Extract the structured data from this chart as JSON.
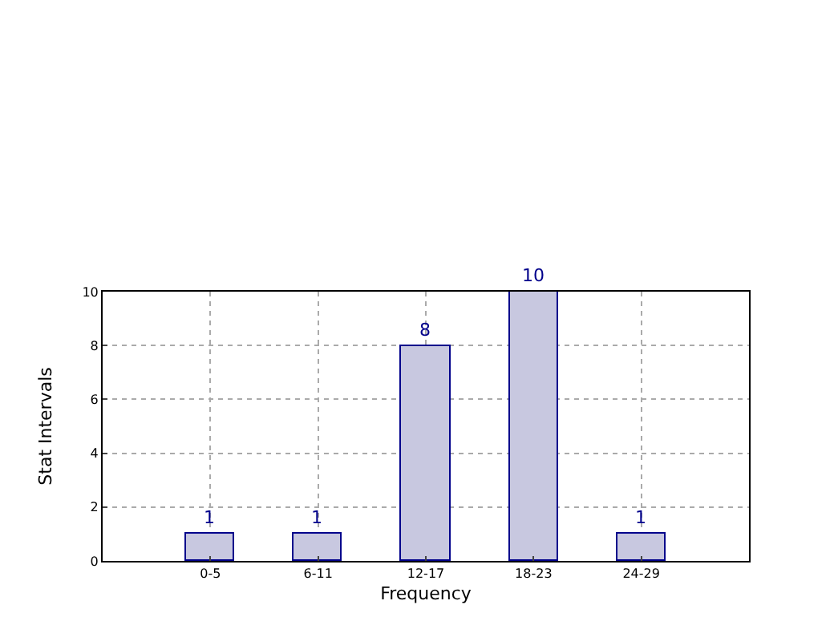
{
  "chart_data": {
    "type": "bar",
    "xlabel": "Frequency",
    "ylabel": "Stat Intervals",
    "categories": [
      "0-5",
      "6-11",
      "12-17",
      "18-23",
      "24-29"
    ],
    "values": [
      1,
      1,
      8,
      10,
      1
    ],
    "color": "#c8c8e0",
    "ylim": [
      0,
      10
    ],
    "yticks": [
      0,
      2,
      4,
      6,
      8,
      10
    ],
    "grid": true,
    "data_labels": true
  }
}
